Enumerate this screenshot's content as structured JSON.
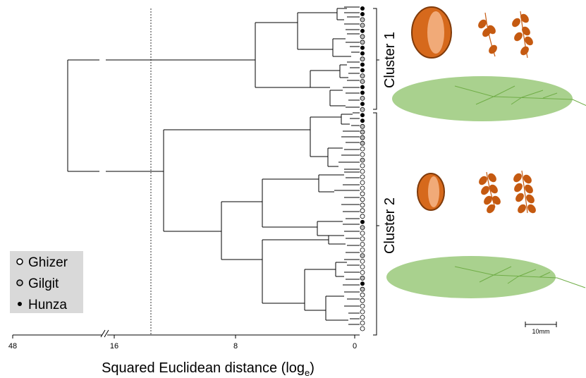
{
  "axis": {
    "ticks": [
      "48",
      "16",
      "8",
      "0"
    ],
    "label_main": "Squared Euclidean distance (log",
    "label_sub": "e",
    "label_close": ")"
  },
  "clusters": [
    {
      "label": "Cluster 1"
    },
    {
      "label": "Cluster 2"
    }
  ],
  "legend": [
    {
      "label": "Ghizer",
      "marker": "open-circle"
    },
    {
      "label": "Gilgit",
      "marker": "grey-circle"
    },
    {
      "label": "Hunza",
      "marker": "filled-dot"
    }
  ],
  "scale_bar": {
    "label": "10mm"
  },
  "colors": {
    "fruit": "#c55a11",
    "seed": "#d6691c",
    "leaf": "#a9d18e",
    "legend_bg": "#d9d9d9",
    "gilgit_fill": "#bfbfbf"
  }
}
